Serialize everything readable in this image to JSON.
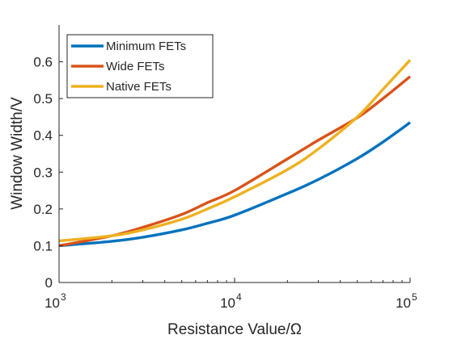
{
  "chart_data": {
    "type": "line",
    "title": "",
    "xlabel": "Resistance Value/Ω",
    "ylabel": "Window Width/V",
    "xscale": "log",
    "xlim": [
      1000,
      100000
    ],
    "ylim": [
      0,
      0.7
    ],
    "xticks": [
      {
        "value": 1000,
        "base": "10",
        "exp": "3"
      },
      {
        "value": 10000,
        "base": "10",
        "exp": "4"
      },
      {
        "value": 100000,
        "base": "10",
        "exp": "5"
      }
    ],
    "yticks": [
      {
        "value": 0,
        "label": "0"
      },
      {
        "value": 0.1,
        "label": "0.1"
      },
      {
        "value": 0.2,
        "label": "0.2"
      },
      {
        "value": 0.3,
        "label": "0.3"
      },
      {
        "value": 0.4,
        "label": "0.4"
      },
      {
        "value": 0.5,
        "label": "0.5"
      },
      {
        "value": 0.6,
        "label": "0.6"
      }
    ],
    "grid": false,
    "legend_position": "top-left",
    "x": [
      1000,
      2000,
      3000,
      5000,
      7000,
      10000,
      20000,
      30000,
      50000,
      70000,
      100000
    ],
    "series": [
      {
        "name": "Minimum FETs",
        "color": "#0072bd",
        "values": [
          0.1,
          0.112,
          0.123,
          0.143,
          0.161,
          0.183,
          0.242,
          0.28,
          0.337,
          0.382,
          0.435
        ]
      },
      {
        "name": "Wide FETs",
        "color": "#d95319",
        "values": [
          0.1,
          0.127,
          0.15,
          0.185,
          0.217,
          0.25,
          0.336,
          0.387,
          0.448,
          0.5,
          0.56
        ]
      },
      {
        "name": "Native FETs",
        "color": "#edb120",
        "values": [
          0.113,
          0.127,
          0.143,
          0.172,
          0.2,
          0.233,
          0.307,
          0.363,
          0.45,
          0.525,
          0.605
        ]
      }
    ]
  }
}
